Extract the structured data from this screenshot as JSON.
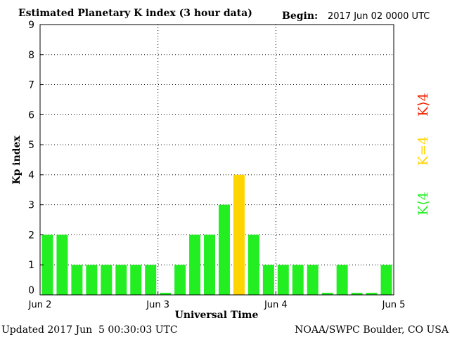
{
  "chart_data": {
    "type": "bar",
    "title": "Estimated Planetary K index (3 hour data)",
    "begin_label": "Begin:",
    "begin_value": "2017 Jun 02 0000 UTC",
    "ylabel": "Kp index",
    "xlabel": "Universal Time",
    "ylim": [
      0,
      9
    ],
    "yticks": [
      "0",
      "1",
      "2",
      "3",
      "4",
      "5",
      "6",
      "7",
      "8",
      "9"
    ],
    "xticks": [
      "Jun 2",
      "Jun 3",
      "Jun 4",
      "Jun 5"
    ],
    "grid": true,
    "values": [
      2,
      2,
      1,
      1,
      1,
      1,
      1,
      1,
      0.07,
      1,
      2,
      2,
      3,
      4,
      2,
      1,
      1,
      1,
      1,
      0.07,
      1,
      0.07,
      0.07,
      1
    ],
    "colors": {
      "low": "#22ee22",
      "equal": "#ffd400",
      "high": "#ee2200"
    },
    "legend": {
      "low": "K⟨4",
      "equal": "K=4",
      "high": "K⟩4"
    }
  },
  "footer": {
    "updated": "Updated 2017 Jun  5 00:30:03 UTC",
    "source": "NOAA/SWPC Boulder, CO USA"
  }
}
